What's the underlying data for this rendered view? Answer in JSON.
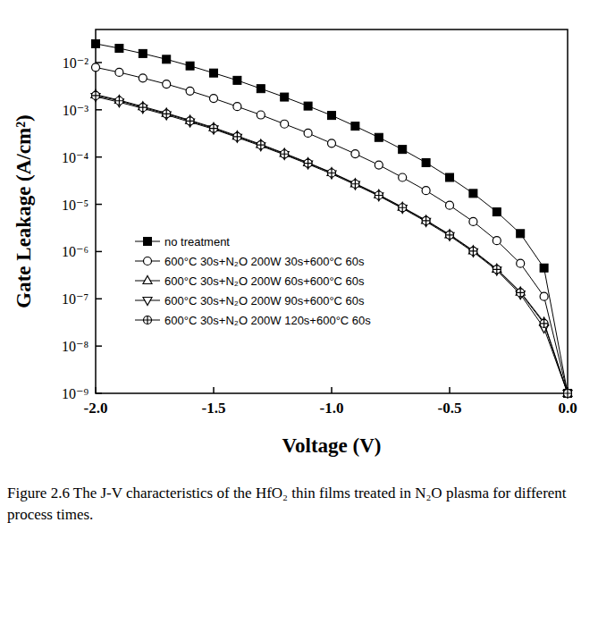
{
  "chart_data": {
    "type": "line",
    "caption": "Figure 2.6 The J-V characteristics of the HfO₂ thin films treated in N₂O plasma for different process times.",
    "x_label": "Voltage (V)",
    "y_label": "Gate Leakage (A/cm²)",
    "log": "y",
    "legend": "lower left",
    "grid": false,
    "xlim": [
      -2,
      0
    ],
    "xticks": [
      {
        "value": -2,
        "label": "-2.0"
      },
      -1.5,
      {
        "value": -1,
        "label": "-1.0"
      },
      -0.5,
      {
        "value": 0,
        "label": "0.0"
      }
    ],
    "ylim": [
      1e-09,
      0.05
    ],
    "yticks": [
      {
        "value": 1e-09,
        "label": "10⁻⁹"
      },
      {
        "value": 1e-08,
        "label": "10⁻⁸"
      },
      {
        "value": 1e-07,
        "label": "10⁻⁷"
      },
      {
        "value": 1e-06,
        "label": "10⁻⁶"
      },
      {
        "value": 1e-05,
        "label": "10⁻⁵"
      },
      {
        "value": 0.0001,
        "label": "10⁻⁴"
      },
      {
        "value": 0.001,
        "label": "10⁻³"
      },
      {
        "value": 0.01,
        "label": "10⁻²"
      }
    ],
    "x": [
      -2.0,
      -1.9,
      -1.8,
      -1.7,
      -1.6,
      -1.5,
      -1.4,
      -1.3,
      -1.2,
      -1.1,
      -1.0,
      -0.9,
      -0.8,
      -0.7,
      -0.6,
      -0.5,
      -0.4,
      -0.3,
      -0.2,
      -0.1,
      0.0
    ],
    "series": [
      {
        "name": "no treatment",
        "color": "#000000",
        "marker": "square",
        "values": [
          0.025,
          0.02,
          0.0155,
          0.0117,
          0.0085,
          0.006,
          0.0042,
          0.0028,
          0.00186,
          0.0012,
          0.00076,
          0.00045,
          0.00026,
          0.000145,
          7.6e-05,
          3.7e-05,
          1.7e-05,
          6.9e-06,
          2.4e-06,
          4.5e-07,
          1e-09
        ]
      },
      {
        "name": "600°C 30s+N₂O 200W 30s+600°C 60s",
        "color": "#000000",
        "marker": "circle",
        "values": [
          0.0079,
          0.0062,
          0.0047,
          0.0035,
          0.0025,
          0.00174,
          0.00117,
          0.00078,
          0.0005,
          0.00032,
          0.000195,
          0.000117,
          6.8e-05,
          3.7e-05,
          1.95e-05,
          9.5e-06,
          4.3e-06,
          1.7e-06,
          5.6e-07,
          1.12e-07,
          1e-09
        ]
      },
      {
        "name": "600°C 30s+N₂O 200W 60s+600°C 60s",
        "color": "#000000",
        "marker": "triangle-up",
        "values": [
          0.0021,
          0.0016,
          0.00117,
          0.00085,
          0.0006,
          0.00042,
          0.00028,
          0.000186,
          0.00012,
          7.6e-05,
          4.7e-05,
          2.75e-05,
          1.6e-05,
          8.7e-06,
          4.6e-06,
          2.3e-06,
          1.05e-06,
          4.3e-07,
          1.4e-07,
          3.2e-08,
          1e-09
        ]
      },
      {
        "name": "600°C 30s+N₂O 200W 90s+600°C 60s",
        "color": "#000000",
        "marker": "triangle-down",
        "values": [
          0.0019,
          0.00145,
          0.00107,
          0.00078,
          0.00055,
          0.00039,
          0.00026,
          0.000172,
          0.000112,
          7.1e-05,
          4.4e-05,
          2.6e-05,
          1.5e-05,
          8.2e-06,
          4.3e-06,
          2.15e-06,
          9.8e-07,
          4e-07,
          1.25e-07,
          2.4e-08,
          1e-09
        ]
      },
      {
        "name": "600°C 30s+N₂O 200W 120s+600°C 60s",
        "color": "#000000",
        "marker": "circle-plus",
        "values": [
          0.002,
          0.00155,
          0.00112,
          0.00082,
          0.00058,
          0.000405,
          0.00027,
          0.00018,
          0.000116,
          7.4e-05,
          4.6e-05,
          2.7e-05,
          1.55e-05,
          8.5e-06,
          4.5e-06,
          2.25e-06,
          1.02e-06,
          4.2e-07,
          1.35e-07,
          3e-08,
          1e-09
        ]
      }
    ]
  }
}
